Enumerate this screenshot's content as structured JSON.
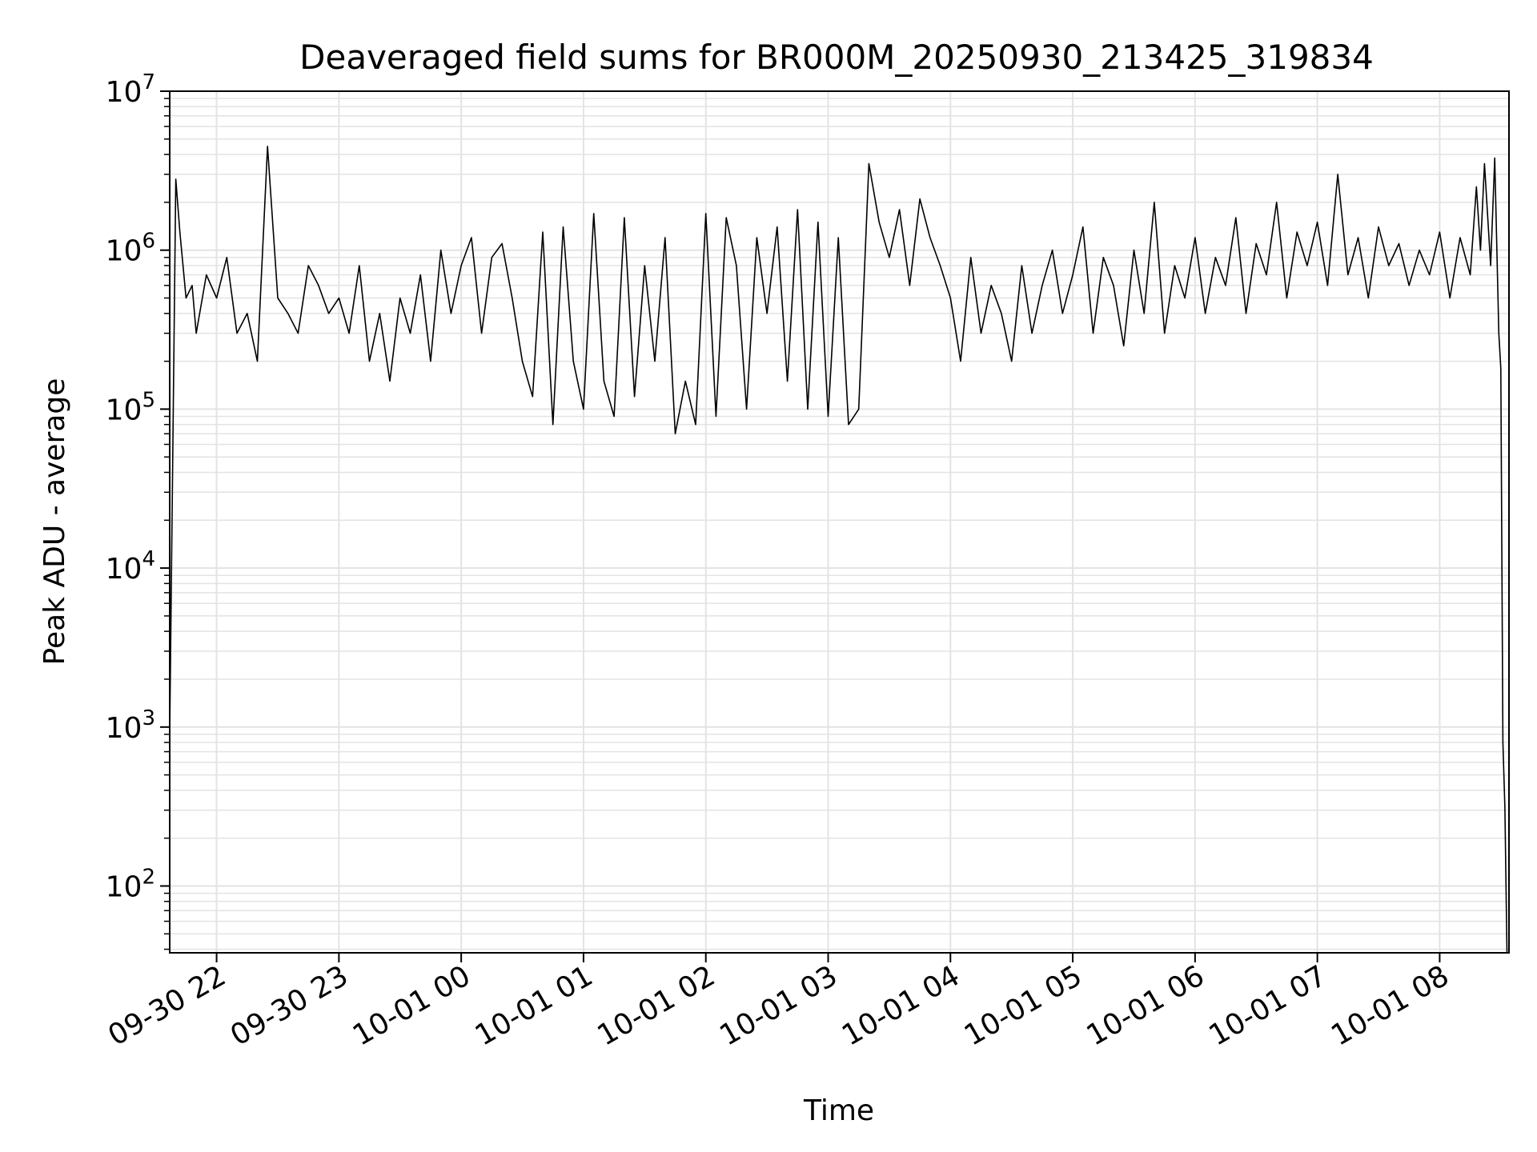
{
  "chart_data": {
    "type": "line",
    "title": "Deaveraged field sums for BR000M_20250930_213425_319834",
    "xlabel": "Time",
    "ylabel": "Peak ADU - average",
    "yscale": "log",
    "ylim": [
      38,
      10000000
    ],
    "xlim": [
      "2025-09-30 21:37",
      "2025-10-01 08:34"
    ],
    "grid": true,
    "grid_minor": true,
    "line_color": "#000000",
    "grid_color": "#e3e3e3",
    "x_ticks": [
      {
        "t": "2025-09-30 22:00",
        "label": "09-30 22"
      },
      {
        "t": "2025-09-30 23:00",
        "label": "09-30 23"
      },
      {
        "t": "2025-10-01 00:00",
        "label": "10-01 00"
      },
      {
        "t": "2025-10-01 01:00",
        "label": "10-01 01"
      },
      {
        "t": "2025-10-01 02:00",
        "label": "10-01 02"
      },
      {
        "t": "2025-10-01 03:00",
        "label": "10-01 03"
      },
      {
        "t": "2025-10-01 04:00",
        "label": "10-01 04"
      },
      {
        "t": "2025-10-01 05:00",
        "label": "10-01 05"
      },
      {
        "t": "2025-10-01 06:00",
        "label": "10-01 06"
      },
      {
        "t": "2025-10-01 07:00",
        "label": "10-01 07"
      },
      {
        "t": "2025-10-01 08:00",
        "label": "10-01 08"
      }
    ],
    "y_ticks": [
      {
        "value": 100,
        "base": "10",
        "exp": "2"
      },
      {
        "value": 1000,
        "base": "10",
        "exp": "3"
      },
      {
        "value": 10000,
        "base": "10",
        "exp": "4"
      },
      {
        "value": 100000,
        "base": "10",
        "exp": "5"
      },
      {
        "value": 1000000,
        "base": "10",
        "exp": "6"
      },
      {
        "value": 10000000,
        "base": "10",
        "exp": "7"
      }
    ],
    "series": [
      {
        "x": [
          "2025-09-30 21:37",
          "2025-09-30 21:40",
          "2025-09-30 21:42",
          "2025-09-30 21:45",
          "2025-09-30 21:48",
          "2025-09-30 21:50",
          "2025-09-30 21:55",
          "2025-09-30 22:00",
          "2025-09-30 22:05",
          "2025-09-30 22:10",
          "2025-09-30 22:15",
          "2025-09-30 22:20",
          "2025-09-30 22:25",
          "2025-09-30 22:30",
          "2025-09-30 22:35",
          "2025-09-30 22:40",
          "2025-09-30 22:45",
          "2025-09-30 22:50",
          "2025-09-30 22:55",
          "2025-09-30 23:00",
          "2025-09-30 23:05",
          "2025-09-30 23:10",
          "2025-09-30 23:15",
          "2025-09-30 23:20",
          "2025-09-30 23:25",
          "2025-09-30 23:30",
          "2025-09-30 23:35",
          "2025-09-30 23:40",
          "2025-09-30 23:45",
          "2025-09-30 23:50",
          "2025-09-30 23:55",
          "2025-10-01 00:00",
          "2025-10-01 00:05",
          "2025-10-01 00:10",
          "2025-10-01 00:15",
          "2025-10-01 00:20",
          "2025-10-01 00:25",
          "2025-10-01 00:30",
          "2025-10-01 00:35",
          "2025-10-01 00:40",
          "2025-10-01 00:45",
          "2025-10-01 00:50",
          "2025-10-01 00:55",
          "2025-10-01 01:00",
          "2025-10-01 01:05",
          "2025-10-01 01:10",
          "2025-10-01 01:15",
          "2025-10-01 01:20",
          "2025-10-01 01:25",
          "2025-10-01 01:30",
          "2025-10-01 01:35",
          "2025-10-01 01:40",
          "2025-10-01 01:45",
          "2025-10-01 01:50",
          "2025-10-01 01:55",
          "2025-10-01 02:00",
          "2025-10-01 02:05",
          "2025-10-01 02:10",
          "2025-10-01 02:15",
          "2025-10-01 02:20",
          "2025-10-01 02:25",
          "2025-10-01 02:30",
          "2025-10-01 02:35",
          "2025-10-01 02:40",
          "2025-10-01 02:45",
          "2025-10-01 02:50",
          "2025-10-01 02:55",
          "2025-10-01 03:00",
          "2025-10-01 03:05",
          "2025-10-01 03:10",
          "2025-10-01 03:15",
          "2025-10-01 03:20",
          "2025-10-01 03:25",
          "2025-10-01 03:30",
          "2025-10-01 03:35",
          "2025-10-01 03:40",
          "2025-10-01 03:45",
          "2025-10-01 03:50",
          "2025-10-01 03:55",
          "2025-10-01 04:00",
          "2025-10-01 04:05",
          "2025-10-01 04:10",
          "2025-10-01 04:15",
          "2025-10-01 04:20",
          "2025-10-01 04:25",
          "2025-10-01 04:30",
          "2025-10-01 04:35",
          "2025-10-01 04:40",
          "2025-10-01 04:45",
          "2025-10-01 04:50",
          "2025-10-01 04:55",
          "2025-10-01 05:00",
          "2025-10-01 05:05",
          "2025-10-01 05:10",
          "2025-10-01 05:15",
          "2025-10-01 05:20",
          "2025-10-01 05:25",
          "2025-10-01 05:30",
          "2025-10-01 05:35",
          "2025-10-01 05:40",
          "2025-10-01 05:45",
          "2025-10-01 05:50",
          "2025-10-01 05:55",
          "2025-10-01 06:00",
          "2025-10-01 06:05",
          "2025-10-01 06:10",
          "2025-10-01 06:15",
          "2025-10-01 06:20",
          "2025-10-01 06:25",
          "2025-10-01 06:30",
          "2025-10-01 06:35",
          "2025-10-01 06:40",
          "2025-10-01 06:45",
          "2025-10-01 06:50",
          "2025-10-01 06:55",
          "2025-10-01 07:00",
          "2025-10-01 07:05",
          "2025-10-01 07:10",
          "2025-10-01 07:15",
          "2025-10-01 07:20",
          "2025-10-01 07:25",
          "2025-10-01 07:30",
          "2025-10-01 07:35",
          "2025-10-01 07:40",
          "2025-10-01 07:45",
          "2025-10-01 07:50",
          "2025-10-01 07:55",
          "2025-10-01 08:00",
          "2025-10-01 08:05",
          "2025-10-01 08:10",
          "2025-10-01 08:15",
          "2025-10-01 08:18",
          "2025-10-01 08:20",
          "2025-10-01 08:22",
          "2025-10-01 08:25",
          "2025-10-01 08:27",
          "2025-10-01 08:29",
          "2025-10-01 08:30",
          "2025-10-01 08:31",
          "2025-10-01 08:32",
          "2025-10-01 08:33"
        ],
        "y": [
          900,
          2800000,
          1300000,
          500000,
          600000,
          300000,
          700000,
          500000,
          900000,
          300000,
          400000,
          200000,
          4500000,
          500000,
          400000,
          300000,
          800000,
          600000,
          400000,
          500000,
          300000,
          800000,
          200000,
          400000,
          150000,
          500000,
          300000,
          700000,
          200000,
          1000000,
          400000,
          800000,
          1200000,
          300000,
          900000,
          1100000,
          500000,
          200000,
          120000,
          1300000,
          80000,
          1400000,
          200000,
          100000,
          1700000,
          150000,
          90000,
          1600000,
          120000,
          800000,
          200000,
          1200000,
          70000,
          150000,
          80000,
          1700000,
          90000,
          1600000,
          800000,
          100000,
          1200000,
          400000,
          1400000,
          150000,
          1800000,
          100000,
          1500000,
          90000,
          1200000,
          80000,
          100000,
          3500000,
          1500000,
          900000,
          1800000,
          600000,
          2100000,
          1200000,
          800000,
          500000,
          200000,
          900000,
          300000,
          600000,
          400000,
          200000,
          800000,
          300000,
          600000,
          1000000,
          400000,
          700000,
          1400000,
          300000,
          900000,
          600000,
          250000,
          1000000,
          400000,
          2000000,
          300000,
          800000,
          500000,
          1200000,
          400000,
          900000,
          600000,
          1600000,
          400000,
          1100000,
          700000,
          2000000,
          500000,
          1300000,
          800000,
          1500000,
          600000,
          3000000,
          700000,
          1200000,
          500000,
          1400000,
          800000,
          1100000,
          600000,
          1000000,
          700000,
          1300000,
          500000,
          1200000,
          700000,
          2500000,
          1000000,
          3500000,
          800000,
          3800000,
          300000,
          180000,
          800,
          310,
          38
        ]
      }
    ]
  }
}
